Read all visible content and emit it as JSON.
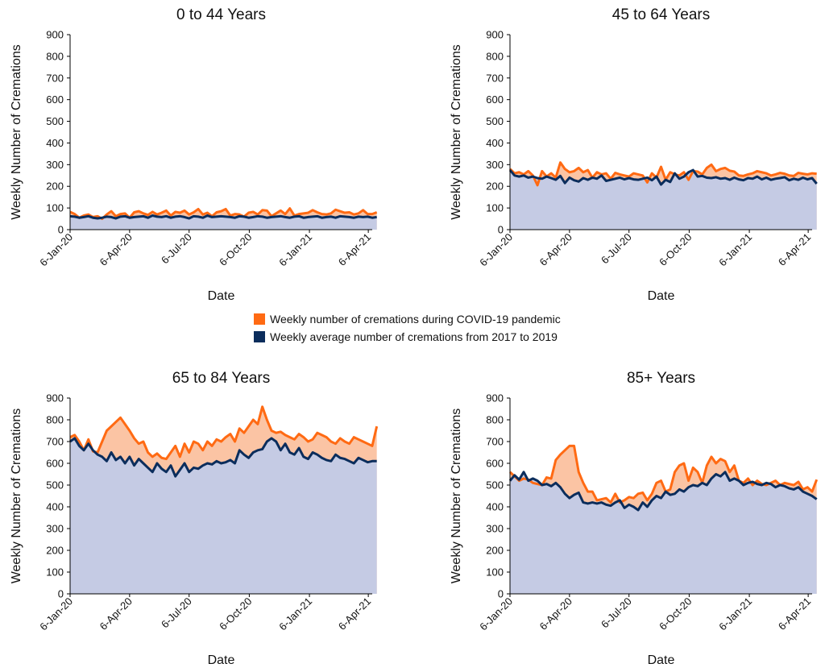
{
  "legend": {
    "covid_label": "Weekly number of cremations during COVID-19 pandemic",
    "average_label": "Weekly average number of cremations from 2017 to 2019"
  },
  "colors": {
    "covid_line": "#FF6A13",
    "covid_fill": "#FBC4A4",
    "average_line": "#0B2D5C",
    "average_fill": "#C5CBE4",
    "axis": "#000000"
  },
  "chart_data": [
    {
      "type": "area",
      "title": "0 to 44 Years",
      "xlabel": "Date",
      "ylabel": "Weekly Number of Cremations",
      "ylim": [
        0,
        900
      ],
      "yticks": [
        0,
        100,
        200,
        300,
        400,
        500,
        600,
        700,
        800,
        900
      ],
      "xticks": [
        "6-Jan-20",
        "6-Apr-20",
        "6-Jul-20",
        "6-Oct-20",
        "6-Jan-21",
        "6-Apr-21"
      ],
      "x_start": "2020-01-06",
      "x_end": "2021-04-12",
      "x_interval_days": 7,
      "series": [
        {
          "name": "Weekly number of cremations during COVID-19 pandemic",
          "values": [
            82,
            72,
            55,
            65,
            70,
            58,
            62,
            50,
            70,
            85,
            62,
            72,
            75,
            55,
            80,
            85,
            75,
            68,
            82,
            70,
            78,
            88,
            65,
            82,
            78,
            88,
            70,
            80,
            95,
            70,
            78,
            62,
            80,
            85,
            95,
            65,
            72,
            70,
            60,
            78,
            82,
            70,
            90,
            88,
            62,
            75,
            88,
            72,
            98,
            65,
            72,
            75,
            78,
            90,
            80,
            72,
            70,
            75,
            92,
            85,
            78,
            80,
            70,
            75,
            90,
            72,
            72,
            80
          ]
        },
        {
          "name": "Weekly average number of cremations from 2017 to 2019",
          "values": [
            62,
            60,
            55,
            58,
            62,
            55,
            52,
            55,
            60,
            58,
            52,
            60,
            62,
            55,
            58,
            60,
            62,
            55,
            65,
            60,
            58,
            62,
            55,
            60,
            62,
            58,
            52,
            62,
            60,
            55,
            65,
            58,
            60,
            62,
            60,
            58,
            55,
            62,
            60,
            55,
            58,
            62,
            60,
            55,
            58,
            60,
            62,
            58,
            55,
            60,
            62,
            55,
            58,
            60,
            62,
            55,
            58,
            60,
            55,
            62,
            60,
            58,
            55,
            60,
            58,
            60,
            55,
            58
          ]
        }
      ]
    },
    {
      "type": "area",
      "title": "45 to 64 Years",
      "xlabel": "Date",
      "ylabel": "Weekly Number of Cremations",
      "ylim": [
        0,
        900
      ],
      "yticks": [
        0,
        100,
        200,
        300,
        400,
        500,
        600,
        700,
        800,
        900
      ],
      "xticks": [
        "6-Jan-20",
        "6-Apr-20",
        "6-Jul-20",
        "6-Oct-20",
        "6-Jan-21",
        "6-Apr-21"
      ],
      "x_start": "2020-01-06",
      "x_end": "2021-04-12",
      "x_interval_days": 7,
      "series": [
        {
          "name": "Weekly number of cremations during COVID-19 pandemic",
          "values": [
            280,
            260,
            265,
            255,
            270,
            250,
            205,
            270,
            245,
            260,
            240,
            310,
            280,
            265,
            270,
            285,
            265,
            275,
            240,
            265,
            255,
            260,
            235,
            262,
            255,
            250,
            245,
            260,
            255,
            250,
            218,
            260,
            240,
            290,
            230,
            265,
            255,
            250,
            265,
            230,
            270,
            268,
            255,
            285,
            300,
            270,
            280,
            285,
            272,
            268,
            250,
            248,
            255,
            260,
            270,
            265,
            260,
            250,
            255,
            262,
            258,
            250,
            248,
            262,
            258,
            255,
            260,
            258
          ]
        },
        {
          "name": "Weekly average number of cremations from 2017 to 2019",
          "values": [
            275,
            250,
            245,
            250,
            240,
            245,
            238,
            235,
            245,
            238,
            230,
            248,
            215,
            240,
            228,
            222,
            238,
            230,
            240,
            235,
            250,
            225,
            230,
            235,
            240,
            232,
            238,
            232,
            230,
            235,
            240,
            228,
            245,
            208,
            230,
            220,
            260,
            235,
            245,
            265,
            275,
            245,
            248,
            240,
            238,
            242,
            235,
            238,
            230,
            240,
            232,
            228,
            238,
            235,
            245,
            232,
            240,
            230,
            235,
            238,
            242,
            228,
            235,
            230,
            240,
            232,
            238,
            212
          ]
        }
      ]
    },
    {
      "type": "area",
      "title": "65 to 84 Years",
      "xlabel": "Date",
      "ylabel": "Weekly Number of Cremations",
      "ylim": [
        0,
        900
      ],
      "yticks": [
        0,
        100,
        200,
        300,
        400,
        500,
        600,
        700,
        800,
        900
      ],
      "xticks": [
        "6-Jan-20",
        "6-Apr-20",
        "6-Jul-20",
        "6-Oct-20",
        "6-Jan-21",
        "6-Apr-21"
      ],
      "x_start": "2020-01-06",
      "x_end": "2021-04-12",
      "x_interval_days": 7,
      "series": [
        {
          "name": "Weekly number of cremations during COVID-19 pandemic",
          "values": [
            720,
            730,
            700,
            660,
            710,
            655,
            650,
            700,
            750,
            770,
            790,
            810,
            780,
            750,
            715,
            690,
            700,
            650,
            630,
            645,
            625,
            620,
            650,
            680,
            630,
            690,
            650,
            700,
            690,
            660,
            700,
            680,
            710,
            700,
            720,
            735,
            700,
            760,
            740,
            770,
            800,
            780,
            860,
            800,
            750,
            740,
            745,
            730,
            720,
            710,
            735,
            720,
            700,
            710,
            740,
            730,
            720,
            700,
            690,
            715,
            700,
            690,
            720,
            710,
            700,
            690,
            680,
            770
          ]
        },
        {
          "name": "Weekly average number of cremations from 2017 to 2019",
          "values": [
            700,
            715,
            680,
            660,
            690,
            660,
            640,
            630,
            610,
            650,
            615,
            630,
            600,
            630,
            590,
            620,
            600,
            580,
            560,
            600,
            575,
            560,
            590,
            540,
            570,
            600,
            560,
            580,
            575,
            590,
            600,
            595,
            610,
            600,
            605,
            615,
            600,
            660,
            640,
            625,
            650,
            660,
            665,
            700,
            715,
            700,
            660,
            690,
            650,
            640,
            670,
            630,
            620,
            650,
            640,
            625,
            615,
            610,
            640,
            625,
            620,
            610,
            600,
            625,
            615,
            605,
            610,
            610
          ]
        }
      ]
    },
    {
      "type": "area",
      "title": "85+ Years",
      "xlabel": "Date",
      "ylabel": "Weekly Number of Cremations",
      "ylim": [
        0,
        900
      ],
      "yticks": [
        0,
        100,
        200,
        300,
        400,
        500,
        600,
        700,
        800,
        900
      ],
      "xticks": [
        "6-Jan-20",
        "6-Apr-20",
        "6-Jul-20",
        "6-Oct-20",
        "6-Jan-21",
        "6-Apr-21"
      ],
      "x_start": "2020-01-06",
      "x_end": "2021-04-12",
      "x_interval_days": 7,
      "series": [
        {
          "name": "Weekly number of cremations during COVID-19 pandemic",
          "values": [
            560,
            540,
            520,
            530,
            525,
            510,
            505,
            500,
            535,
            530,
            615,
            640,
            660,
            680,
            680,
            560,
            510,
            470,
            470,
            430,
            435,
            440,
            420,
            460,
            420,
            430,
            445,
            440,
            460,
            465,
            430,
            460,
            510,
            520,
            470,
            480,
            560,
            590,
            600,
            520,
            580,
            560,
            510,
            590,
            630,
            600,
            620,
            610,
            560,
            590,
            520,
            510,
            530,
            500,
            520,
            505,
            500,
            510,
            520,
            500,
            510,
            505,
            500,
            515,
            480,
            490,
            470,
            525
          ]
        },
        {
          "name": "Weekly average number of cremations from 2017 to 2019",
          "values": [
            520,
            545,
            525,
            560,
            520,
            530,
            520,
            500,
            505,
            495,
            510,
            490,
            460,
            440,
            455,
            465,
            420,
            415,
            420,
            415,
            420,
            410,
            405,
            420,
            430,
            395,
            410,
            400,
            385,
            420,
            400,
            430,
            450,
            440,
            470,
            455,
            460,
            480,
            470,
            490,
            500,
            495,
            510,
            500,
            530,
            550,
            540,
            560,
            520,
            530,
            520,
            500,
            510,
            515,
            505,
            500,
            510,
            505,
            490,
            500,
            495,
            485,
            480,
            490,
            470,
            460,
            450,
            435
          ]
        }
      ]
    }
  ]
}
